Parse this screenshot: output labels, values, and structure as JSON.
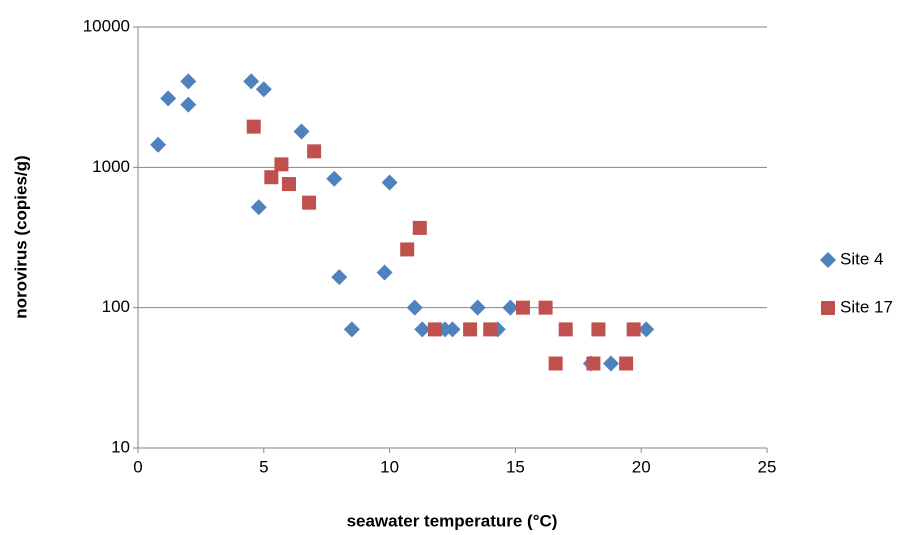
{
  "chart_data": {
    "type": "scatter",
    "xlabel": "seawater temperature (°C)",
    "ylabel": "norovirus (copies/g)",
    "xlim": [
      0,
      25
    ],
    "xticks": [
      0,
      5,
      10,
      15,
      20,
      25
    ],
    "ylim": [
      10,
      10000
    ],
    "yticks": [
      10,
      100,
      1000,
      10000
    ],
    "ylog": true,
    "grid": true,
    "legend": "right",
    "series": [
      {
        "name": "Site 4",
        "color": "#4f81bd",
        "marker": "diamond",
        "x": [
          0.8,
          1.2,
          2.0,
          2.0,
          4.5,
          5.0,
          4.8,
          6.5,
          7.8,
          8.0,
          8.5,
          9.8,
          10.0,
          11.0,
          11.3,
          12.2,
          12.5,
          13.5,
          14.3,
          14.8,
          18.0,
          18.8,
          20.2
        ],
        "values": [
          1450,
          3100,
          4100,
          2800,
          4100,
          3600,
          520,
          1800,
          830,
          165,
          70,
          178,
          780,
          100,
          70,
          70,
          70,
          100,
          70,
          100,
          40,
          40,
          70
        ]
      },
      {
        "name": "Site 17",
        "color": "#c0504d",
        "marker": "square",
        "x": [
          4.6,
          5.3,
          5.7,
          6.0,
          6.8,
          7.0,
          10.7,
          11.2,
          11.8,
          13.2,
          14.0,
          15.3,
          16.2,
          16.6,
          17.0,
          18.1,
          18.3,
          19.4,
          19.7
        ],
        "values": [
          1950,
          850,
          1050,
          760,
          560,
          1300,
          260,
          370,
          70,
          70,
          70,
          100,
          100,
          40,
          70,
          40,
          70,
          40,
          70
        ]
      }
    ]
  }
}
